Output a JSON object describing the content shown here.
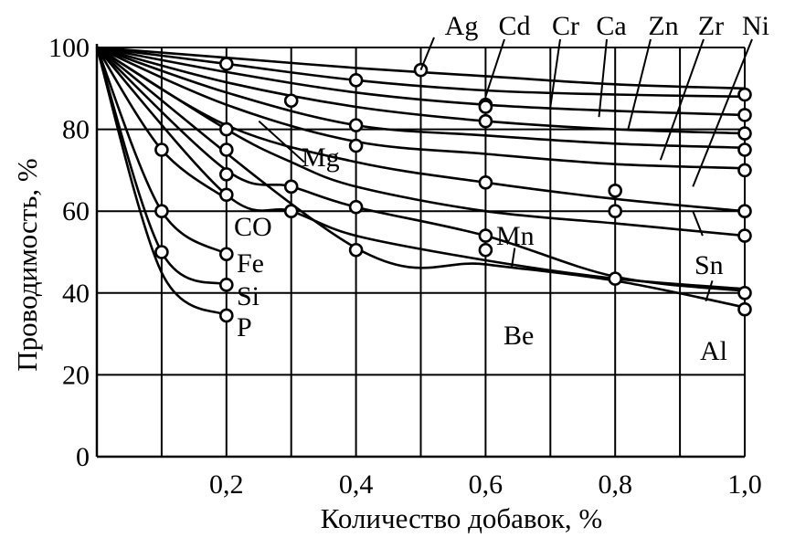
{
  "chart_data": {
    "type": "line",
    "xlabel": "Количество добавок, %",
    "ylabel": "Проводимость, %",
    "xlim": [
      0,
      1.0
    ],
    "ylim": [
      0,
      100
    ],
    "x_ticks": [
      0.2,
      0.4,
      0.6,
      0.8,
      1.0
    ],
    "x_tick_labels": [
      "0,2",
      "0,4",
      "0,6",
      "0,8",
      "1,0"
    ],
    "y_ticks": [
      0,
      20,
      40,
      60,
      80,
      100
    ],
    "y_tick_labels": [
      "0",
      "20",
      "40",
      "60",
      "80",
      "100"
    ],
    "x_grid": [
      0.1,
      0.2,
      0.3,
      0.4,
      0.5,
      0.6,
      0.7,
      0.8,
      0.9,
      1.0
    ],
    "y_grid": [
      20,
      40,
      60,
      80,
      100
    ],
    "grid": true,
    "series": [
      {
        "name": "Ag",
        "x": [
          0,
          0.2,
          0.4,
          0.6,
          0.8,
          1.0
        ],
        "y": [
          100,
          97.5,
          95,
          93,
          91,
          90
        ],
        "markers": []
      },
      {
        "name": "Cd",
        "x": [
          0,
          0.2,
          0.4,
          0.6,
          0.8,
          1.0
        ],
        "y": [
          100,
          96,
          92,
          89.5,
          88.5,
          88
        ],
        "markers": [
          [
            0.2,
            96
          ],
          [
            0.4,
            92
          ],
          [
            1.0,
            88.5
          ]
        ]
      },
      {
        "name": "Cr",
        "x": [
          0,
          0.2,
          0.4,
          0.6,
          0.8,
          1.0
        ],
        "y": [
          100,
          94,
          89,
          86,
          84.5,
          83.5
        ],
        "markers": [
          [
            0.6,
            86
          ],
          [
            1.0,
            83.5
          ]
        ]
      },
      {
        "name": "Ca",
        "x": [
          0,
          0.2,
          0.4,
          0.6,
          0.8,
          1.0
        ],
        "y": [
          100,
          91.5,
          85.5,
          82,
          80,
          79
        ],
        "markers": [
          [
            0.6,
            82
          ],
          [
            1.0,
            79
          ]
        ]
      },
      {
        "name": "Zn",
        "x": [
          0,
          0.2,
          0.4,
          0.6,
          0.8,
          1.0
        ],
        "y": [
          100,
          89,
          81,
          78.5,
          76.5,
          75.5
        ],
        "markers": [
          [
            0.4,
            81
          ],
          [
            1.0,
            75
          ]
        ]
      },
      {
        "name": "Zr",
        "x": [
          0,
          0.2,
          0.4,
          0.6,
          0.8,
          1.0
        ],
        "y": [
          100,
          86,
          77,
          74,
          71.5,
          70.5
        ],
        "markers": [
          [
            0.4,
            76
          ],
          [
            1.0,
            70
          ]
        ]
      },
      {
        "name": "Ni",
        "x": [
          0,
          0.2,
          0.4,
          0.6,
          0.8,
          1.0
        ],
        "y": [
          100,
          81,
          72,
          67,
          63,
          60
        ],
        "markers": [
          [
            0.6,
            67
          ],
          [
            0.8,
            65
          ],
          [
            1.0,
            60
          ]
        ]
      },
      {
        "name": "Mg",
        "x": [
          0,
          0.2,
          0.3,
          0.4,
          0.6,
          0.8,
          1.0
        ],
        "y": [
          100,
          80,
          72,
          66,
          60,
          57,
          54
        ],
        "markers": [
          [
            0.2,
            80
          ],
          [
            0.3,
            87
          ],
          [
            1.0,
            54
          ]
        ]
      },
      {
        "name": "Mn",
        "x": [
          0,
          0.2,
          0.3,
          0.4,
          0.6,
          0.8,
          1.0
        ],
        "y": [
          100,
          70,
          66,
          61,
          54,
          44,
          40.5
        ],
        "markers": [
          [
            0.2,
            75
          ],
          [
            0.3,
            66
          ],
          [
            0.4,
            61
          ],
          [
            0.6,
            54
          ],
          [
            0.8,
            60
          ]
        ]
      },
      {
        "name": "Be",
        "x": [
          0,
          0.2,
          0.3,
          0.4,
          0.6,
          0.8,
          1.0
        ],
        "y": [
          100,
          64,
          60,
          54,
          48,
          43.5,
          41
        ],
        "markers": [
          [
            0.2,
            69
          ],
          [
            0.3,
            60
          ],
          [
            0.6,
            50.5
          ],
          [
            0.8,
            43.5
          ],
          [
            1.0,
            40
          ]
        ]
      },
      {
        "name": "Al",
        "x": [
          0,
          0.4,
          0.6,
          0.8,
          1.0
        ],
        "y": [
          100,
          51,
          47,
          43,
          36.5
        ],
        "markers": [
          [
            0.4,
            50.5
          ],
          [
            1.0,
            36
          ]
        ]
      },
      {
        "name": "CO",
        "x": [
          0,
          0.1,
          0.2
        ],
        "y": [
          100,
          75,
          63
        ],
        "markers": [
          [
            0.1,
            75
          ],
          [
            0.2,
            64
          ]
        ]
      },
      {
        "name": "Fe",
        "x": [
          0,
          0.1,
          0.2
        ],
        "y": [
          100,
          60,
          49.5
        ],
        "markers": [
          [
            0.1,
            60
          ],
          [
            0.2,
            49.5
          ]
        ]
      },
      {
        "name": "Si",
        "x": [
          0,
          0.1,
          0.2
        ],
        "y": [
          100,
          50,
          42
        ],
        "markers": [
          [
            0.1,
            50
          ],
          [
            0.2,
            42
          ]
        ]
      },
      {
        "name": "P",
        "x": [
          0,
          0.1,
          0.2
        ],
        "y": [
          100,
          45,
          34.5
        ],
        "markers": [
          [
            0.2,
            34.5
          ]
        ]
      }
    ],
    "extra_markers": [
      [
        0.5,
        94.5
      ],
      [
        0.6,
        85.5
      ]
    ],
    "labels_top": [
      "Ag",
      "Cd",
      "Cr",
      "Ca",
      "Zn",
      "Zr",
      "Ni"
    ],
    "labels_inline": [
      "Mg",
      "Mn",
      "Sn",
      "Be",
      "Al",
      "CO",
      "Fe",
      "Si",
      "P"
    ]
  }
}
